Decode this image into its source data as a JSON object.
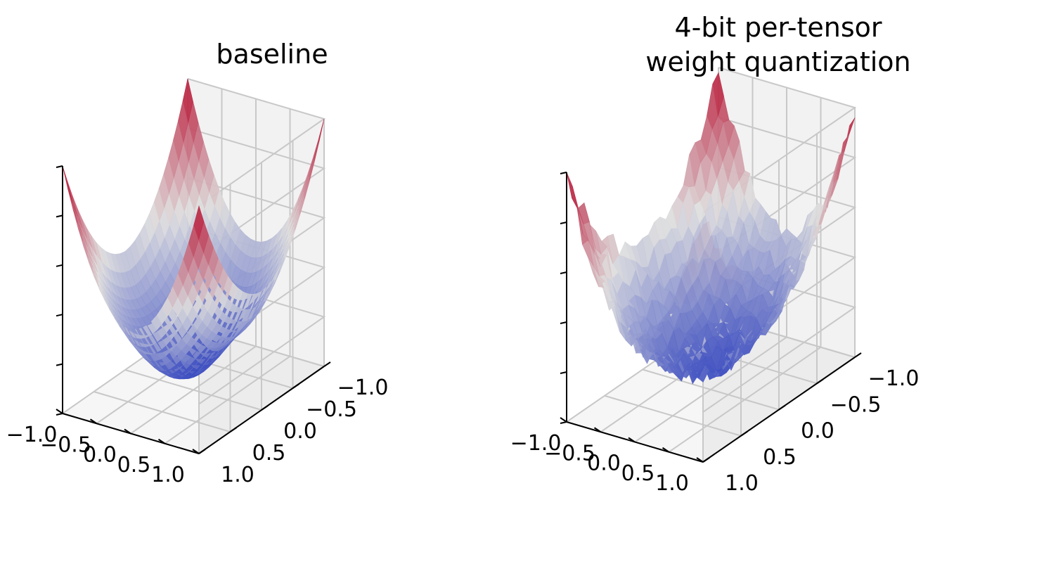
{
  "chart_data": [
    {
      "type": "surface3d",
      "title_lines": [
        "baseline"
      ],
      "surface": "smooth",
      "colormap": "coolwarm",
      "x_ticks": [
        "−1.0",
        "−0.5",
        "0.0",
        "0.5",
        "1.0"
      ],
      "y_ticks": [
        "−1.0",
        "−0.5",
        "0.0",
        "0.5",
        "1.0"
      ],
      "z_ticks": [],
      "xlim": [
        -1,
        1
      ],
      "ylim": [
        -1,
        1
      ],
      "grid": true
    },
    {
      "type": "surface3d",
      "title_lines": [
        "4-bit per-tensor",
        "weight quantization"
      ],
      "surface": "noisy",
      "colormap": "coolwarm",
      "x_ticks": [
        "−1.0",
        "−0.5",
        "0.0",
        "0.5",
        "1.0"
      ],
      "y_ticks": [
        "−1.0",
        "−0.5",
        "0.0",
        "0.5",
        "1.0"
      ],
      "z_ticks": [],
      "xlim": [
        -1,
        1
      ],
      "ylim": [
        -1,
        1
      ],
      "grid": true
    }
  ],
  "colors": {
    "pane_left": "#ececec",
    "pane_back": "#f2f2f2",
    "pane_floor": "#f6f6f6",
    "grid": "#c8c8c8",
    "low": "#3b4cc0",
    "mid": "#dddddd",
    "high": "#b40426"
  }
}
